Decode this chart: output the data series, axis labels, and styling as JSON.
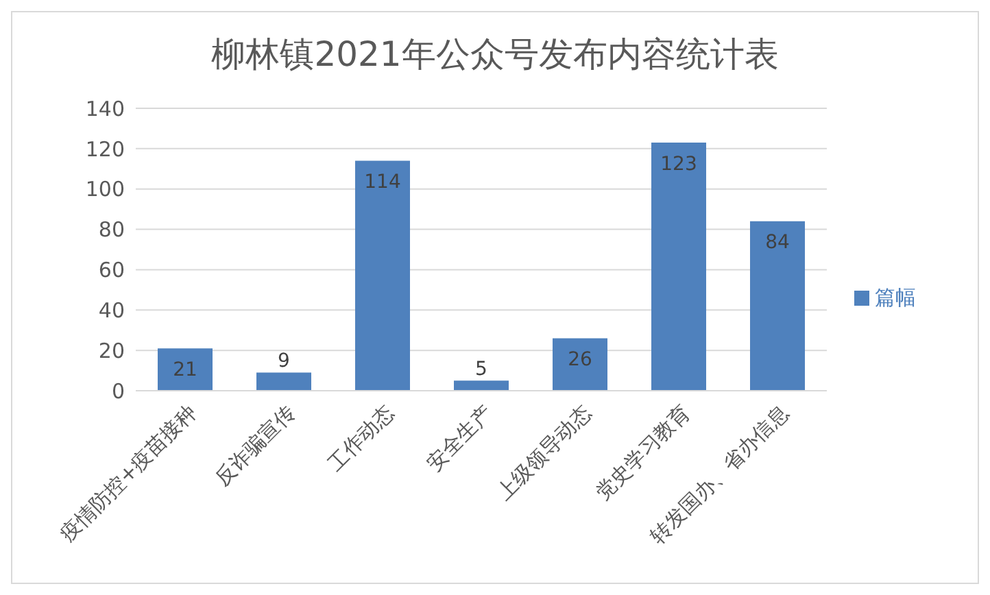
{
  "chart_data": {
    "type": "bar",
    "title": "柳林镇2021年公众号发布内容统计表",
    "categories": [
      "疫情防控+疫苗接种",
      "反诈骗宣传",
      "工作动态",
      "安全生产",
      "上级领导动态",
      "党史学习教育",
      "转发国办、省办信息"
    ],
    "series": [
      {
        "name": "篇幅",
        "color": "#4f81bd",
        "values": [
          21,
          9,
          114,
          5,
          26,
          123,
          84
        ]
      }
    ],
    "ylim": [
      0,
      140
    ],
    "yticks": [
      0,
      20,
      40,
      60,
      80,
      100,
      120,
      140
    ],
    "grid": "y",
    "legend": "right",
    "data_labels": true
  }
}
